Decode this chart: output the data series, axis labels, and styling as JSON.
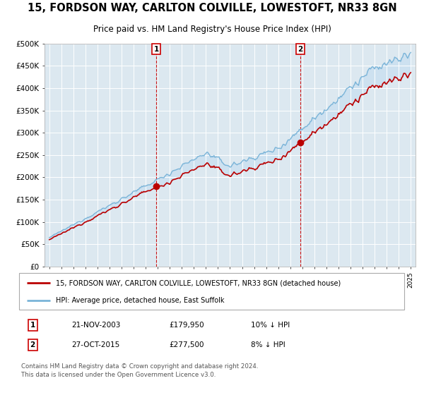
{
  "title": "15, FORDSON WAY, CARLTON COLVILLE, LOWESTOFT, NR33 8GN",
  "subtitle": "Price paid vs. HM Land Registry's House Price Index (HPI)",
  "ylabel_ticks": [
    "£0",
    "£50K",
    "£100K",
    "£150K",
    "£200K",
    "£250K",
    "£300K",
    "£350K",
    "£400K",
    "£450K",
    "£500K"
  ],
  "ytick_values": [
    0,
    50000,
    100000,
    150000,
    200000,
    250000,
    300000,
    350000,
    400000,
    450000,
    500000
  ],
  "ylim": [
    0,
    500000
  ],
  "hpi_color": "#7ab4d8",
  "price_color": "#bb0000",
  "fill_color": "#c8dff0",
  "transaction1_year": 2003.88,
  "transaction1_price": 179950,
  "transaction2_year": 2015.83,
  "transaction2_price": 277500,
  "transaction1_date": "21-NOV-2003",
  "transaction2_date": "27-OCT-2015",
  "transaction1_hpi_diff": "10% ↓ HPI",
  "transaction2_hpi_diff": "8% ↓ HPI",
  "legend_label1": "15, FORDSON WAY, CARLTON COLVILLE, LOWESTOFT, NR33 8GN (detached house)",
  "legend_label2": "HPI: Average price, detached house, East Suffolk",
  "footer": "Contains HM Land Registry data © Crown copyright and database right 2024.\nThis data is licensed under the Open Government Licence v3.0.",
  "background_color": "#ffffff",
  "plot_bg_color": "#dce8f0"
}
